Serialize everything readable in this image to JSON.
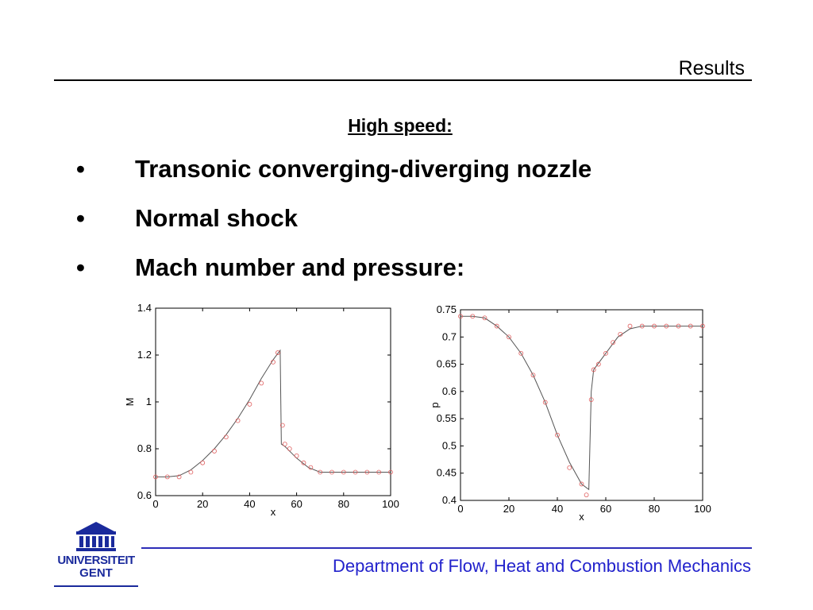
{
  "header": {
    "title": "Results"
  },
  "section": {
    "subtitle": "High speed:"
  },
  "bullets": [
    {
      "marker": "•",
      "text": "Transonic converging-diverging nozzle"
    },
    {
      "marker": "•",
      "text": "Normal shock"
    },
    {
      "marker": "•",
      "text": "Mach number and pressure:"
    }
  ],
  "footer": {
    "department": "Department of Flow, Heat and Combustion Mechanics",
    "logo_line1": "UNIVERSITEIT",
    "logo_line2": "GENT"
  },
  "colors": {
    "footer_text": "#2222cc",
    "footer_rule": "#2d2db8",
    "logo": "#1a2a9c",
    "markers": "#e06060"
  },
  "chart_data": [
    {
      "type": "line",
      "xlabel": "x",
      "ylabel": "M",
      "xlim": [
        0,
        100
      ],
      "ylim": [
        0.6,
        1.4
      ],
      "xticks": [
        0,
        20,
        40,
        60,
        80,
        100
      ],
      "yticks": [
        0.6,
        0.8,
        1,
        1.2,
        1.4
      ],
      "ytick_labels": [
        "0.6",
        "0.8",
        "1",
        "1.2",
        "1.4"
      ],
      "series": [
        {
          "style": "line",
          "x": [
            0,
            5,
            10,
            15,
            20,
            25,
            30,
            35,
            40,
            45,
            50,
            53,
            53.5,
            55,
            60,
            65,
            70,
            75,
            80,
            90,
            100
          ],
          "y": [
            0.68,
            0.68,
            0.685,
            0.71,
            0.75,
            0.8,
            0.86,
            0.93,
            1.01,
            1.1,
            1.18,
            1.22,
            0.82,
            0.81,
            0.76,
            0.72,
            0.7,
            0.7,
            0.7,
            0.7,
            0.7
          ]
        },
        {
          "style": "markers",
          "x": [
            0,
            5,
            10,
            15,
            20,
            25,
            30,
            35,
            40,
            45,
            50,
            52,
            54,
            55,
            57,
            60,
            63,
            66,
            70,
            75,
            80,
            85,
            90,
            95,
            100
          ],
          "y": [
            0.68,
            0.68,
            0.68,
            0.7,
            0.74,
            0.79,
            0.85,
            0.92,
            0.99,
            1.08,
            1.17,
            1.21,
            0.9,
            0.82,
            0.8,
            0.77,
            0.74,
            0.72,
            0.7,
            0.7,
            0.7,
            0.7,
            0.7,
            0.7,
            0.7
          ]
        }
      ]
    },
    {
      "type": "line",
      "xlabel": "x",
      "ylabel": "p",
      "xlim": [
        0,
        100
      ],
      "ylim": [
        0.4,
        0.75
      ],
      "xticks": [
        0,
        20,
        40,
        60,
        80,
        100
      ],
      "yticks": [
        0.4,
        0.45,
        0.5,
        0.55,
        0.6,
        0.65,
        0.7,
        0.75
      ],
      "ytick_labels": [
        "0.4",
        "0.45",
        "0.5",
        "0.55",
        "0.6",
        "0.65",
        "0.7",
        "0.75"
      ],
      "series": [
        {
          "style": "line",
          "x": [
            0,
            5,
            10,
            15,
            20,
            25,
            30,
            35,
            40,
            45,
            50,
            53,
            54,
            55,
            60,
            65,
            70,
            75,
            80,
            90,
            100
          ],
          "y": [
            0.738,
            0.738,
            0.735,
            0.72,
            0.7,
            0.67,
            0.63,
            0.58,
            0.52,
            0.47,
            0.43,
            0.42,
            0.6,
            0.64,
            0.67,
            0.7,
            0.715,
            0.72,
            0.72,
            0.72,
            0.72
          ]
        },
        {
          "style": "markers",
          "x": [
            0,
            5,
            10,
            15,
            20,
            25,
            30,
            35,
            40,
            45,
            50,
            52,
            54,
            55,
            57,
            60,
            63,
            66,
            70,
            75,
            80,
            85,
            90,
            95,
            100
          ],
          "y": [
            0.738,
            0.738,
            0.735,
            0.72,
            0.7,
            0.67,
            0.63,
            0.58,
            0.52,
            0.46,
            0.43,
            0.41,
            0.585,
            0.64,
            0.65,
            0.67,
            0.69,
            0.705,
            0.72,
            0.72,
            0.72,
            0.72,
            0.72,
            0.72,
            0.72
          ]
        }
      ]
    }
  ]
}
